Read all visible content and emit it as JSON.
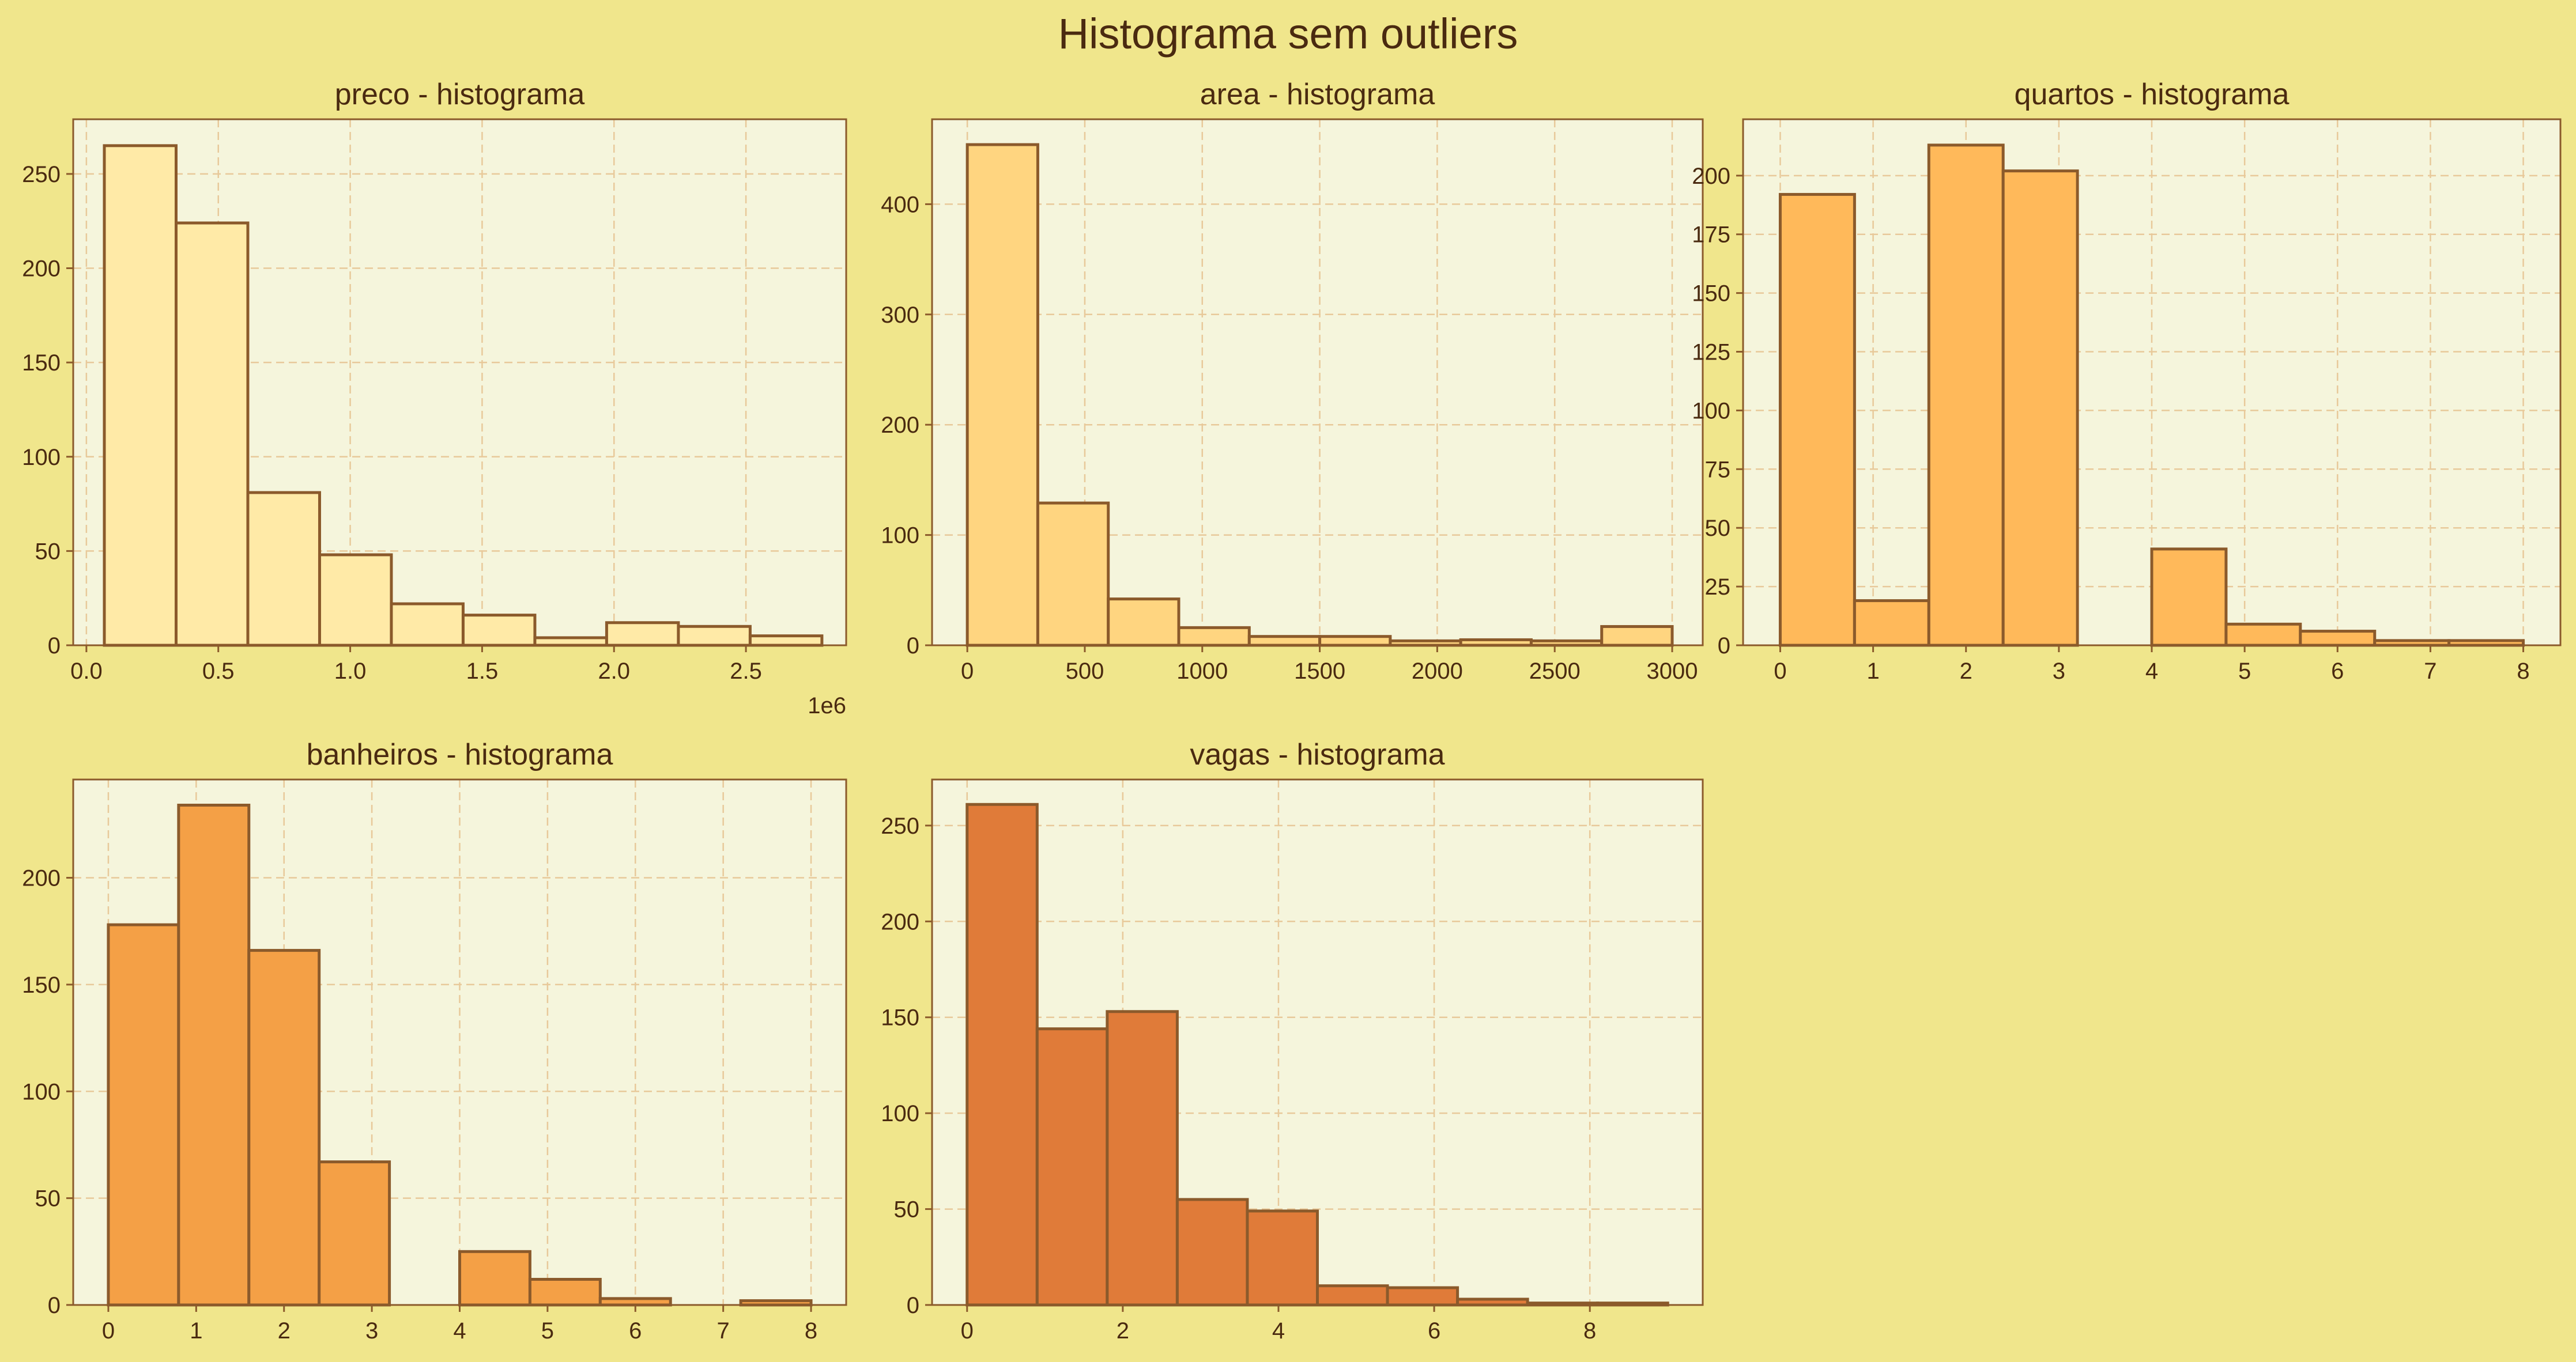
{
  "figure": {
    "title": "Histograma sem outliers",
    "background": "#f0e68c",
    "axes_background": "#f5f5dc",
    "edge_color": "#8b5a2b",
    "grid_color": "#e8c99a"
  },
  "chart_data": [
    {
      "type": "bar",
      "title": "preco - histograma",
      "color": "#ffeaa7",
      "bin_edges": [
        68000,
        340000,
        612000,
        884000,
        1156000,
        1428000,
        1700000,
        1972000,
        2244000,
        2516000,
        2788000
      ],
      "values": [
        265,
        224,
        81,
        48,
        22,
        16,
        4,
        12,
        10,
        5
      ],
      "xlim": [
        -50000,
        2880000
      ],
      "ylim": [
        0,
        279
      ],
      "x_ticks": [
        0,
        500000,
        1000000,
        1500000,
        2000000,
        2500000
      ],
      "x_tick_labels": [
        "0.0",
        "0.5",
        "1.0",
        "1.5",
        "2.0",
        "2.5"
      ],
      "y_ticks": [
        0,
        50,
        100,
        150,
        200,
        250
      ],
      "offset_label": "1e6",
      "grid": true
    },
    {
      "type": "bar",
      "title": "area - histograma",
      "color": "#ffd580",
      "bin_edges": [
        0,
        300,
        600,
        900,
        1200,
        1500,
        1800,
        2100,
        2400,
        2700,
        3000
      ],
      "values": [
        454,
        129,
        42,
        16,
        8,
        8,
        4,
        5,
        4,
        17
      ],
      "xlim": [
        -150,
        3130
      ],
      "ylim": [
        0,
        477
      ],
      "x_ticks": [
        0,
        500,
        1000,
        1500,
        2000,
        2500,
        3000
      ],
      "x_tick_labels": [
        "0",
        "500",
        "1000",
        "1500",
        "2000",
        "2500",
        "3000"
      ],
      "y_ticks": [
        0,
        100,
        200,
        300,
        400
      ],
      "grid": true
    },
    {
      "type": "bar",
      "title": "quartos - histograma",
      "color": "#ffb95a",
      "bin_edges": [
        0,
        0.8,
        1.6,
        2.4,
        3.2,
        4.0,
        4.8,
        5.6,
        6.4,
        7.2,
        8.0
      ],
      "values": [
        192,
        19,
        213,
        202,
        0,
        41,
        9,
        6,
        2,
        2
      ],
      "xlim": [
        -0.4,
        8.4
      ],
      "ylim": [
        0,
        224
      ],
      "x_ticks": [
        0,
        1,
        2,
        3,
        4,
        5,
        6,
        7,
        8
      ],
      "x_tick_labels": [
        "0",
        "1",
        "2",
        "3",
        "4",
        "5",
        "6",
        "7",
        "8"
      ],
      "y_ticks": [
        0,
        25,
        50,
        75,
        100,
        125,
        150,
        175,
        200
      ],
      "grid": true
    },
    {
      "type": "bar",
      "title": "banheiros - histograma",
      "color": "#f4a046",
      "bin_edges": [
        0,
        0.8,
        1.6,
        2.4,
        3.2,
        4.0,
        4.8,
        5.6,
        6.4,
        7.2,
        8.0
      ],
      "values": [
        178,
        234,
        166,
        67,
        0,
        25,
        12,
        3,
        0,
        2
      ],
      "xlim": [
        -0.4,
        8.4
      ],
      "ylim": [
        0,
        246
      ],
      "x_ticks": [
        0,
        1,
        2,
        3,
        4,
        5,
        6,
        7,
        8
      ],
      "x_tick_labels": [
        "0",
        "1",
        "2",
        "3",
        "4",
        "5",
        "6",
        "7",
        "8"
      ],
      "y_ticks": [
        0,
        50,
        100,
        150,
        200
      ],
      "grid": true
    },
    {
      "type": "bar",
      "title": "vagas - histograma",
      "color": "#e07b39",
      "bin_edges": [
        0,
        0.9,
        1.8,
        2.7,
        3.6,
        4.5,
        5.4,
        6.3,
        7.2,
        8.1,
        9.0
      ],
      "values": [
        261,
        144,
        153,
        55,
        49,
        10,
        9,
        3,
        1,
        1
      ],
      "xlim": [
        -0.45,
        9.45
      ],
      "ylim": [
        0,
        274
      ],
      "x_ticks": [
        0,
        2,
        4,
        6,
        8
      ],
      "x_tick_labels": [
        "0",
        "2",
        "4",
        "6",
        "8"
      ],
      "y_ticks": [
        0,
        50,
        100,
        150,
        200,
        250
      ],
      "grid": true
    }
  ]
}
